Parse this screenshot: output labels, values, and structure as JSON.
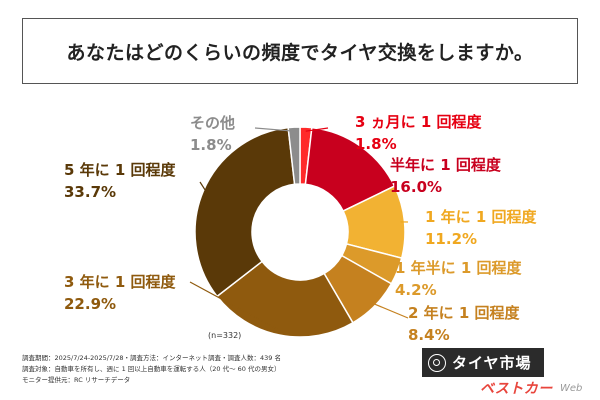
{
  "title": "あなたはどのくらいの頻度でタイヤ交換をしますか。",
  "sample_note": "(n=332)",
  "footnotes": [
    "調査期間：2025/7/24-2025/7/28・調査方法：インターネット調査・調査人数：439 名",
    "調査対象：自動車を所有し、週に 1 回以上自動車を運転する人（20 代～ 60 代の男女）",
    "モニター提供元：RC リサーチデータ"
  ],
  "logo_text": "タイヤ市場",
  "brand_text": "ベストカー",
  "brand_suffix": "Web",
  "chart_data": {
    "type": "pie",
    "donut": true,
    "title": "あなたはどのくらいの頻度でタイヤ交換をしますか。",
    "labels": [
      "3 ヵ月に 1 回程度",
      "半年に 1 回程度",
      "1 年に 1 回程度",
      "1 年半に 1 回程度",
      "2 年に 1 回程度",
      "3 年に 1 回程度",
      "5 年に 1 回程度",
      "その他"
    ],
    "values": [
      1.8,
      16.0,
      11.2,
      4.2,
      8.4,
      22.9,
      33.7,
      1.8
    ],
    "value_labels": [
      "1.8%",
      "16.0%",
      "11.2%",
      "4.2%",
      "8.4%",
      "22.9%",
      "33.7%",
      "1.8%"
    ],
    "colors": [
      "#ff2a2a",
      "#c8001e",
      "#f2b233",
      "#dc9a2a",
      "#c5811f",
      "#8f5a0e",
      "#5a3908",
      "#8c8c8c"
    ],
    "label_colors": [
      "#e60012",
      "#c8001e",
      "#f0a820",
      "#dc9a2a",
      "#c5811f",
      "#8f5a0e",
      "#5a3908",
      "#8c8c8c"
    ],
    "start": "top",
    "direction": "clockwise"
  }
}
